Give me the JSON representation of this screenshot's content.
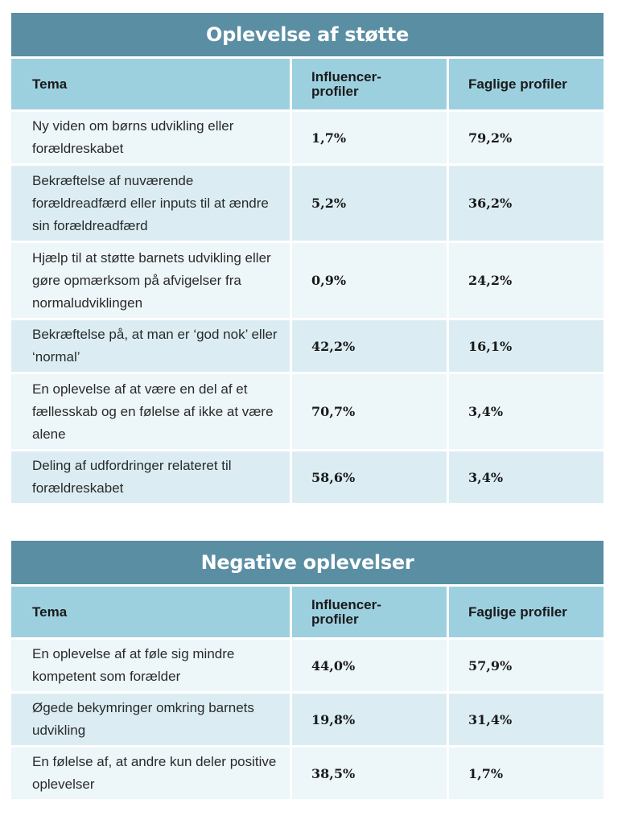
{
  "table1": {
    "title": "Oplevelse af støtte",
    "headers": [
      "Tema",
      "Influencer-\nprofiler",
      "Faglige profiler"
    ],
    "rows": [
      {
        "tema": "Ny viden om børns udvikling eller forældreskabet",
        "influencer": "1,7%",
        "faglige": "79,2%"
      },
      {
        "tema": "Bekræftelse af nuværende forældreadfærd eller inputs til at ændre sin forældreadfærd",
        "influencer": "5,2%",
        "faglige": "36,2%"
      },
      {
        "tema": "Hjælp til at støtte barnets udvikling eller gøre opmærksom på afvigelser fra normaludviklingen",
        "influencer": "0,9%",
        "faglige": "24,2%"
      },
      {
        "tema": "Bekræftelse på, at man er ‘god nok’ eller ‘normal’",
        "influencer": "42,2%",
        "faglige": "16,1%"
      },
      {
        "tema": "En oplevelse af at være en del af et fællesskab og en følelse af ikke at være alene",
        "influencer": "70,7%",
        "faglige": "3,4%"
      },
      {
        "tema": "Deling af udfordringer relateret til forældreskabet",
        "influencer": "58,6%",
        "faglige": "3,4%"
      }
    ]
  },
  "table2": {
    "title": "Negative oplevelser",
    "headers": [
      "Tema",
      "Influencer-\nprofiler",
      "Faglige profiler"
    ],
    "rows": [
      {
        "tema": "En oplevelse af at føle sig mindre kompetent som forælder",
        "influencer": "44,0%",
        "faglige": "57,9%"
      },
      {
        "tema": "Øgede bekymringer omkring barnets udvikling",
        "influencer": "19,8%",
        "faglige": "31,4%"
      },
      {
        "tema": "En følelse af, at andre kun deler positive oplevelser",
        "influencer": "38,5%",
        "faglige": "1,7%"
      }
    ]
  },
  "colors": {
    "title_bg": "#5a8ea3",
    "header_bg": "#9dd0df",
    "row_light": "#edf6f9",
    "row_dark": "#dbedf3"
  }
}
